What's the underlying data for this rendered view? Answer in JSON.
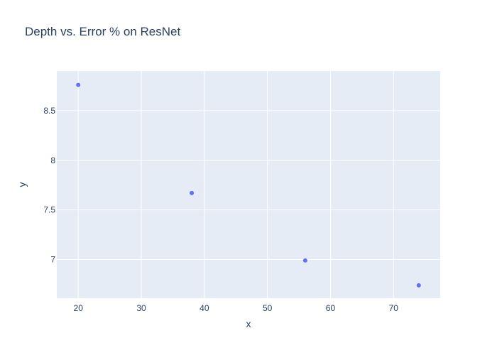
{
  "chart_data": {
    "type": "scatter",
    "title": "Depth vs. Error % on ResNet",
    "xlabel": "x",
    "ylabel": "y",
    "xlim": [
      16.6,
      77.4
    ],
    "ylim": [
      6.61,
      8.9
    ],
    "xticks": [
      20,
      30,
      40,
      50,
      60,
      70
    ],
    "yticks": [
      7,
      7.5,
      8,
      8.5
    ],
    "ytick_labels": [
      "7",
      "7.5",
      "8",
      "8.5"
    ],
    "grid": true,
    "colors": {
      "plot_background": "#e5ecf6",
      "grid": "#ffffff",
      "marker": "#636efa",
      "text": "#2a3f5f"
    },
    "series": [
      {
        "x": [
          20,
          38,
          56,
          74
        ],
        "y": [
          8.76,
          7.67,
          6.99,
          6.74
        ]
      }
    ]
  }
}
